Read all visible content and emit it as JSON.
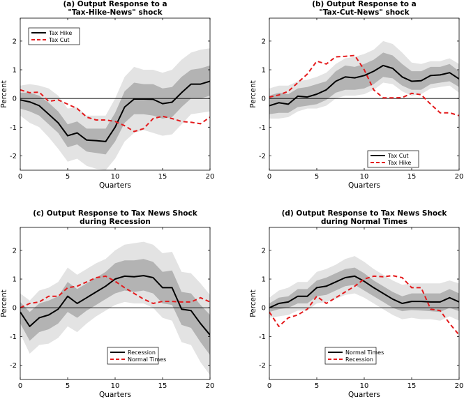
{
  "chart_data": [
    {
      "type": "line",
      "panel": "a",
      "title": [
        "(a) Output Response to a",
        "\"Tax-Hike-News\" shock"
      ],
      "xlabel": "Quarters",
      "ylabel": "Percent",
      "xlim": [
        0,
        20
      ],
      "ylim": [
        -2.5,
        2.8
      ],
      "xticks": [
        "0",
        "5",
        "10",
        "15",
        "20"
      ],
      "yticks": [
        "-2",
        "-1",
        "0",
        "1",
        "2"
      ],
      "legend_position": "top-left",
      "x": [
        0,
        1,
        2,
        3,
        4,
        5,
        6,
        7,
        8,
        9,
        10,
        11,
        12,
        13,
        14,
        15,
        16,
        17,
        18,
        19,
        20
      ],
      "series": [
        {
          "name": "Tax Hike",
          "style": "solid",
          "color": "#000000",
          "values": [
            -0.05,
            -0.12,
            -0.25,
            -0.55,
            -0.85,
            -1.3,
            -1.2,
            -1.45,
            -1.47,
            -1.5,
            -1.0,
            -0.3,
            -0.02,
            -0.02,
            -0.03,
            -0.18,
            -0.13,
            0.2,
            0.5,
            0.5,
            0.6
          ]
        },
        {
          "name": "Tax Cut",
          "style": "dashed",
          "color": "#e41a1c",
          "values": [
            0.3,
            0.2,
            0.22,
            -0.1,
            -0.05,
            -0.2,
            -0.35,
            -0.65,
            -0.75,
            -0.75,
            -0.8,
            -0.95,
            -1.15,
            -1.05,
            -0.7,
            -0.62,
            -0.7,
            -0.8,
            -0.83,
            -0.88,
            -0.65
          ]
        }
      ],
      "band_outer": {
        "lower": [
          -0.6,
          -0.85,
          -1.0,
          -1.35,
          -1.75,
          -2.2,
          -2.1,
          -2.35,
          -2.45,
          -2.5,
          -2.1,
          -1.5,
          -1.2,
          -1.1,
          -1.2,
          -1.3,
          -1.25,
          -0.9,
          -0.55,
          -0.5,
          -0.45
        ],
        "upper": [
          0.45,
          0.5,
          0.45,
          0.35,
          0.1,
          -0.35,
          -0.3,
          -0.6,
          -0.6,
          -0.6,
          0.0,
          0.75,
          1.1,
          1.0,
          1.0,
          0.9,
          1.0,
          1.35,
          1.6,
          1.7,
          1.75
        ]
      },
      "band_inner": {
        "lower": [
          -0.35,
          -0.45,
          -0.6,
          -0.9,
          -1.2,
          -1.7,
          -1.6,
          -1.85,
          -1.9,
          -1.95,
          -1.5,
          -0.85,
          -0.55,
          -0.55,
          -0.6,
          -0.7,
          -0.65,
          -0.3,
          0.0,
          0.0,
          0.1
        ],
        "upper": [
          0.2,
          0.2,
          0.1,
          -0.15,
          -0.45,
          -0.9,
          -0.8,
          -1.05,
          -1.05,
          -1.05,
          -0.5,
          0.25,
          0.55,
          0.5,
          0.5,
          0.35,
          0.4,
          0.75,
          1.0,
          1.05,
          1.15
        ]
      }
    },
    {
      "type": "line",
      "panel": "b",
      "title": [
        "(b) Output Response to a",
        "\"Tax-Cut-News\" shock"
      ],
      "xlabel": "Quarters",
      "ylabel": "Percent",
      "xlim": [
        0,
        20
      ],
      "ylim": [
        -2.5,
        2.8
      ],
      "xticks": [
        "0",
        "5",
        "10",
        "15",
        "20"
      ],
      "yticks": [
        "-2",
        "-1",
        "0",
        "1",
        "2"
      ],
      "legend_position": "bottom-right",
      "x": [
        0,
        1,
        2,
        3,
        4,
        5,
        6,
        7,
        8,
        9,
        10,
        11,
        12,
        13,
        14,
        15,
        16,
        17,
        18,
        19,
        20
      ],
      "series": [
        {
          "name": "Tax Cut",
          "style": "solid",
          "color": "#000000",
          "values": [
            -0.25,
            -0.15,
            -0.2,
            0.08,
            0.05,
            0.15,
            0.3,
            0.6,
            0.75,
            0.72,
            0.8,
            0.95,
            1.15,
            1.05,
            0.75,
            0.6,
            0.62,
            0.8,
            0.82,
            0.9,
            0.68
          ]
        },
        {
          "name": "Tax Hike",
          "style": "dashed",
          "color": "#e41a1c",
          "values": [
            0.05,
            0.12,
            0.25,
            0.55,
            0.85,
            1.3,
            1.2,
            1.45,
            1.47,
            1.5,
            1.0,
            0.3,
            0.02,
            0.02,
            0.03,
            0.18,
            0.13,
            -0.2,
            -0.5,
            -0.5,
            -0.6
          ]
        }
      ],
      "band_outer": {
        "lower": [
          -0.7,
          -0.7,
          -0.65,
          -0.45,
          -0.35,
          -0.35,
          -0.25,
          0.0,
          0.1,
          0.1,
          0.15,
          0.3,
          0.55,
          0.5,
          0.25,
          0.1,
          0.15,
          0.35,
          0.4,
          0.45,
          0.2
        ],
        "upper": [
          0.35,
          0.45,
          0.45,
          0.6,
          0.65,
          0.75,
          0.9,
          1.2,
          1.4,
          1.45,
          1.55,
          1.7,
          2.0,
          1.9,
          1.6,
          1.25,
          1.2,
          1.3,
          1.3,
          1.4,
          1.2
        ]
      },
      "band_inner": {
        "lower": [
          -0.55,
          -0.5,
          -0.5,
          -0.3,
          -0.25,
          -0.2,
          -0.05,
          0.2,
          0.3,
          0.3,
          0.35,
          0.5,
          0.75,
          0.7,
          0.45,
          0.3,
          0.3,
          0.5,
          0.55,
          0.6,
          0.4
        ],
        "upper": [
          0.1,
          0.2,
          0.15,
          0.35,
          0.4,
          0.5,
          0.6,
          0.95,
          1.15,
          1.1,
          1.2,
          1.35,
          1.6,
          1.5,
          1.2,
          0.95,
          0.95,
          1.1,
          1.1,
          1.2,
          0.95
        ]
      }
    },
    {
      "type": "line",
      "panel": "c",
      "title": [
        "(c) Output Response to Tax News Shock",
        "during Recession"
      ],
      "xlabel": "Quarters",
      "ylabel": "Percent",
      "xlim": [
        0,
        20
      ],
      "ylim": [
        -2.5,
        2.8
      ],
      "xticks": [
        "0",
        "5",
        "10",
        "15",
        "20"
      ],
      "yticks": [
        "-2",
        "-1",
        "0",
        "1",
        "2"
      ],
      "legend_position": "bottom-right",
      "x": [
        0,
        1,
        2,
        3,
        4,
        5,
        6,
        7,
        8,
        9,
        10,
        11,
        12,
        13,
        14,
        15,
        16,
        17,
        18,
        19,
        20
      ],
      "series": [
        {
          "name": "Recession",
          "style": "solid",
          "color": "#000000",
          "values": [
            -0.15,
            -0.65,
            -0.35,
            -0.25,
            -0.05,
            0.4,
            0.15,
            0.35,
            0.55,
            0.75,
            1.0,
            1.1,
            1.08,
            1.12,
            1.05,
            0.7,
            0.7,
            -0.05,
            -0.1,
            -0.55,
            -0.95
          ]
        },
        {
          "name": "Normal Times",
          "style": "dashed",
          "color": "#e41a1c",
          "values": [
            0.0,
            0.15,
            0.2,
            0.4,
            0.4,
            0.7,
            0.75,
            0.9,
            1.05,
            1.1,
            0.92,
            0.7,
            0.5,
            0.3,
            0.15,
            0.22,
            0.22,
            0.2,
            0.2,
            0.35,
            0.2
          ]
        }
      ],
      "band_outer": {
        "lower": [
          -0.9,
          -1.6,
          -1.3,
          -1.25,
          -1.05,
          -0.65,
          -0.85,
          -0.55,
          -0.3,
          -0.1,
          0.1,
          0.2,
          0.15,
          0.15,
          0.0,
          -0.35,
          -0.45,
          -1.2,
          -1.3,
          -1.9,
          -2.35
        ],
        "upper": [
          0.5,
          0.25,
          0.6,
          0.7,
          0.9,
          1.4,
          1.15,
          1.35,
          1.55,
          1.7,
          2.0,
          2.2,
          2.25,
          2.3,
          2.2,
          1.9,
          1.95,
          1.25,
          1.2,
          0.85,
          0.45
        ]
      },
      "band_inner": {
        "lower": [
          -0.55,
          -1.15,
          -0.85,
          -0.75,
          -0.55,
          -0.15,
          -0.35,
          -0.1,
          0.1,
          0.3,
          0.5,
          0.6,
          0.55,
          0.6,
          0.5,
          0.15,
          0.1,
          -0.6,
          -0.7,
          -1.2,
          -1.65
        ],
        "upper": [
          0.2,
          -0.15,
          0.15,
          0.25,
          0.4,
          0.9,
          0.65,
          0.85,
          1.05,
          1.25,
          1.55,
          1.65,
          1.65,
          1.7,
          1.6,
          1.25,
          1.3,
          0.55,
          0.5,
          0.1,
          -0.25
        ]
      }
    },
    {
      "type": "line",
      "panel": "d",
      "title": [
        "(d) Output Response to Tax News Shock",
        "during Normal Times"
      ],
      "xlabel": "Quarters",
      "ylabel": "Percent",
      "xlim": [
        0,
        20
      ],
      "ylim": [
        -2.5,
        2.8
      ],
      "xticks": [
        "0",
        "5",
        "10",
        "15",
        "20"
      ],
      "yticks": [
        "-2",
        "-1",
        "0",
        "1",
        "2"
      ],
      "legend_position": "bottom-right",
      "x": [
        0,
        1,
        2,
        3,
        4,
        5,
        6,
        7,
        8,
        9,
        10,
        11,
        12,
        13,
        14,
        15,
        16,
        17,
        18,
        19,
        20
      ],
      "series": [
        {
          "name": "Normal Times",
          "style": "solid",
          "color": "#000000",
          "values": [
            0.0,
            0.15,
            0.2,
            0.4,
            0.4,
            0.7,
            0.75,
            0.9,
            1.05,
            1.1,
            0.92,
            0.7,
            0.5,
            0.3,
            0.15,
            0.22,
            0.22,
            0.2,
            0.2,
            0.35,
            0.2
          ]
        },
        {
          "name": "Recession",
          "style": "dashed",
          "color": "#e41a1c",
          "values": [
            -0.15,
            -0.65,
            -0.35,
            -0.25,
            -0.05,
            0.4,
            0.15,
            0.35,
            0.55,
            0.75,
            1.0,
            1.1,
            1.08,
            1.12,
            1.05,
            0.7,
            0.7,
            -0.05,
            -0.1,
            -0.55,
            -0.95
          ]
        }
      ],
      "band_outer": {
        "lower": [
          -0.35,
          -0.3,
          -0.25,
          -0.1,
          -0.1,
          0.15,
          0.2,
          0.3,
          0.45,
          0.5,
          0.35,
          0.15,
          -0.05,
          -0.25,
          -0.4,
          -0.35,
          -0.4,
          -0.4,
          -0.45,
          -0.3,
          -0.45
        ],
        "upper": [
          0.35,
          0.6,
          0.7,
          0.9,
          0.9,
          1.25,
          1.35,
          1.5,
          1.7,
          1.8,
          1.6,
          1.35,
          1.15,
          0.95,
          0.8,
          0.85,
          0.85,
          0.85,
          0.85,
          0.95,
          0.85
        ]
      },
      "band_inner": {
        "lower": [
          -0.15,
          -0.05,
          0.0,
          0.15,
          0.15,
          0.4,
          0.45,
          0.6,
          0.75,
          0.8,
          0.6,
          0.4,
          0.2,
          0.0,
          -0.12,
          -0.08,
          -0.1,
          -0.12,
          -0.15,
          0.0,
          -0.12
        ],
        "upper": [
          0.15,
          0.35,
          0.4,
          0.65,
          0.65,
          0.95,
          1.05,
          1.2,
          1.35,
          1.4,
          1.2,
          0.95,
          0.75,
          0.55,
          0.4,
          0.5,
          0.5,
          0.5,
          0.5,
          0.65,
          0.5
        ]
      }
    }
  ],
  "colors": {
    "band_outer": "#e3e3e3",
    "band_inner": "#b3b3b3",
    "line_main": "#000000",
    "line_compare": "#e41a1c"
  }
}
